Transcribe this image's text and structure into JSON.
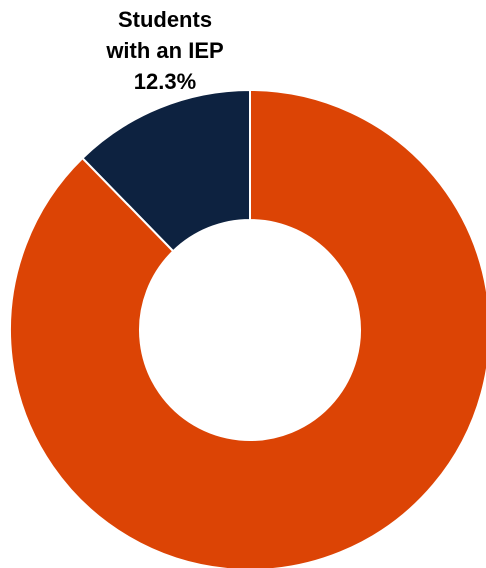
{
  "chart_data": {
    "type": "pie",
    "donut": true,
    "slices": [
      {
        "label_lines": [
          "Students",
          "with an IEP",
          "12.3%"
        ],
        "value": 12.3,
        "color": "#0d2240"
      },
      {
        "label_lines": [],
        "value": 87.7,
        "color": "#dc4405"
      }
    ]
  }
}
